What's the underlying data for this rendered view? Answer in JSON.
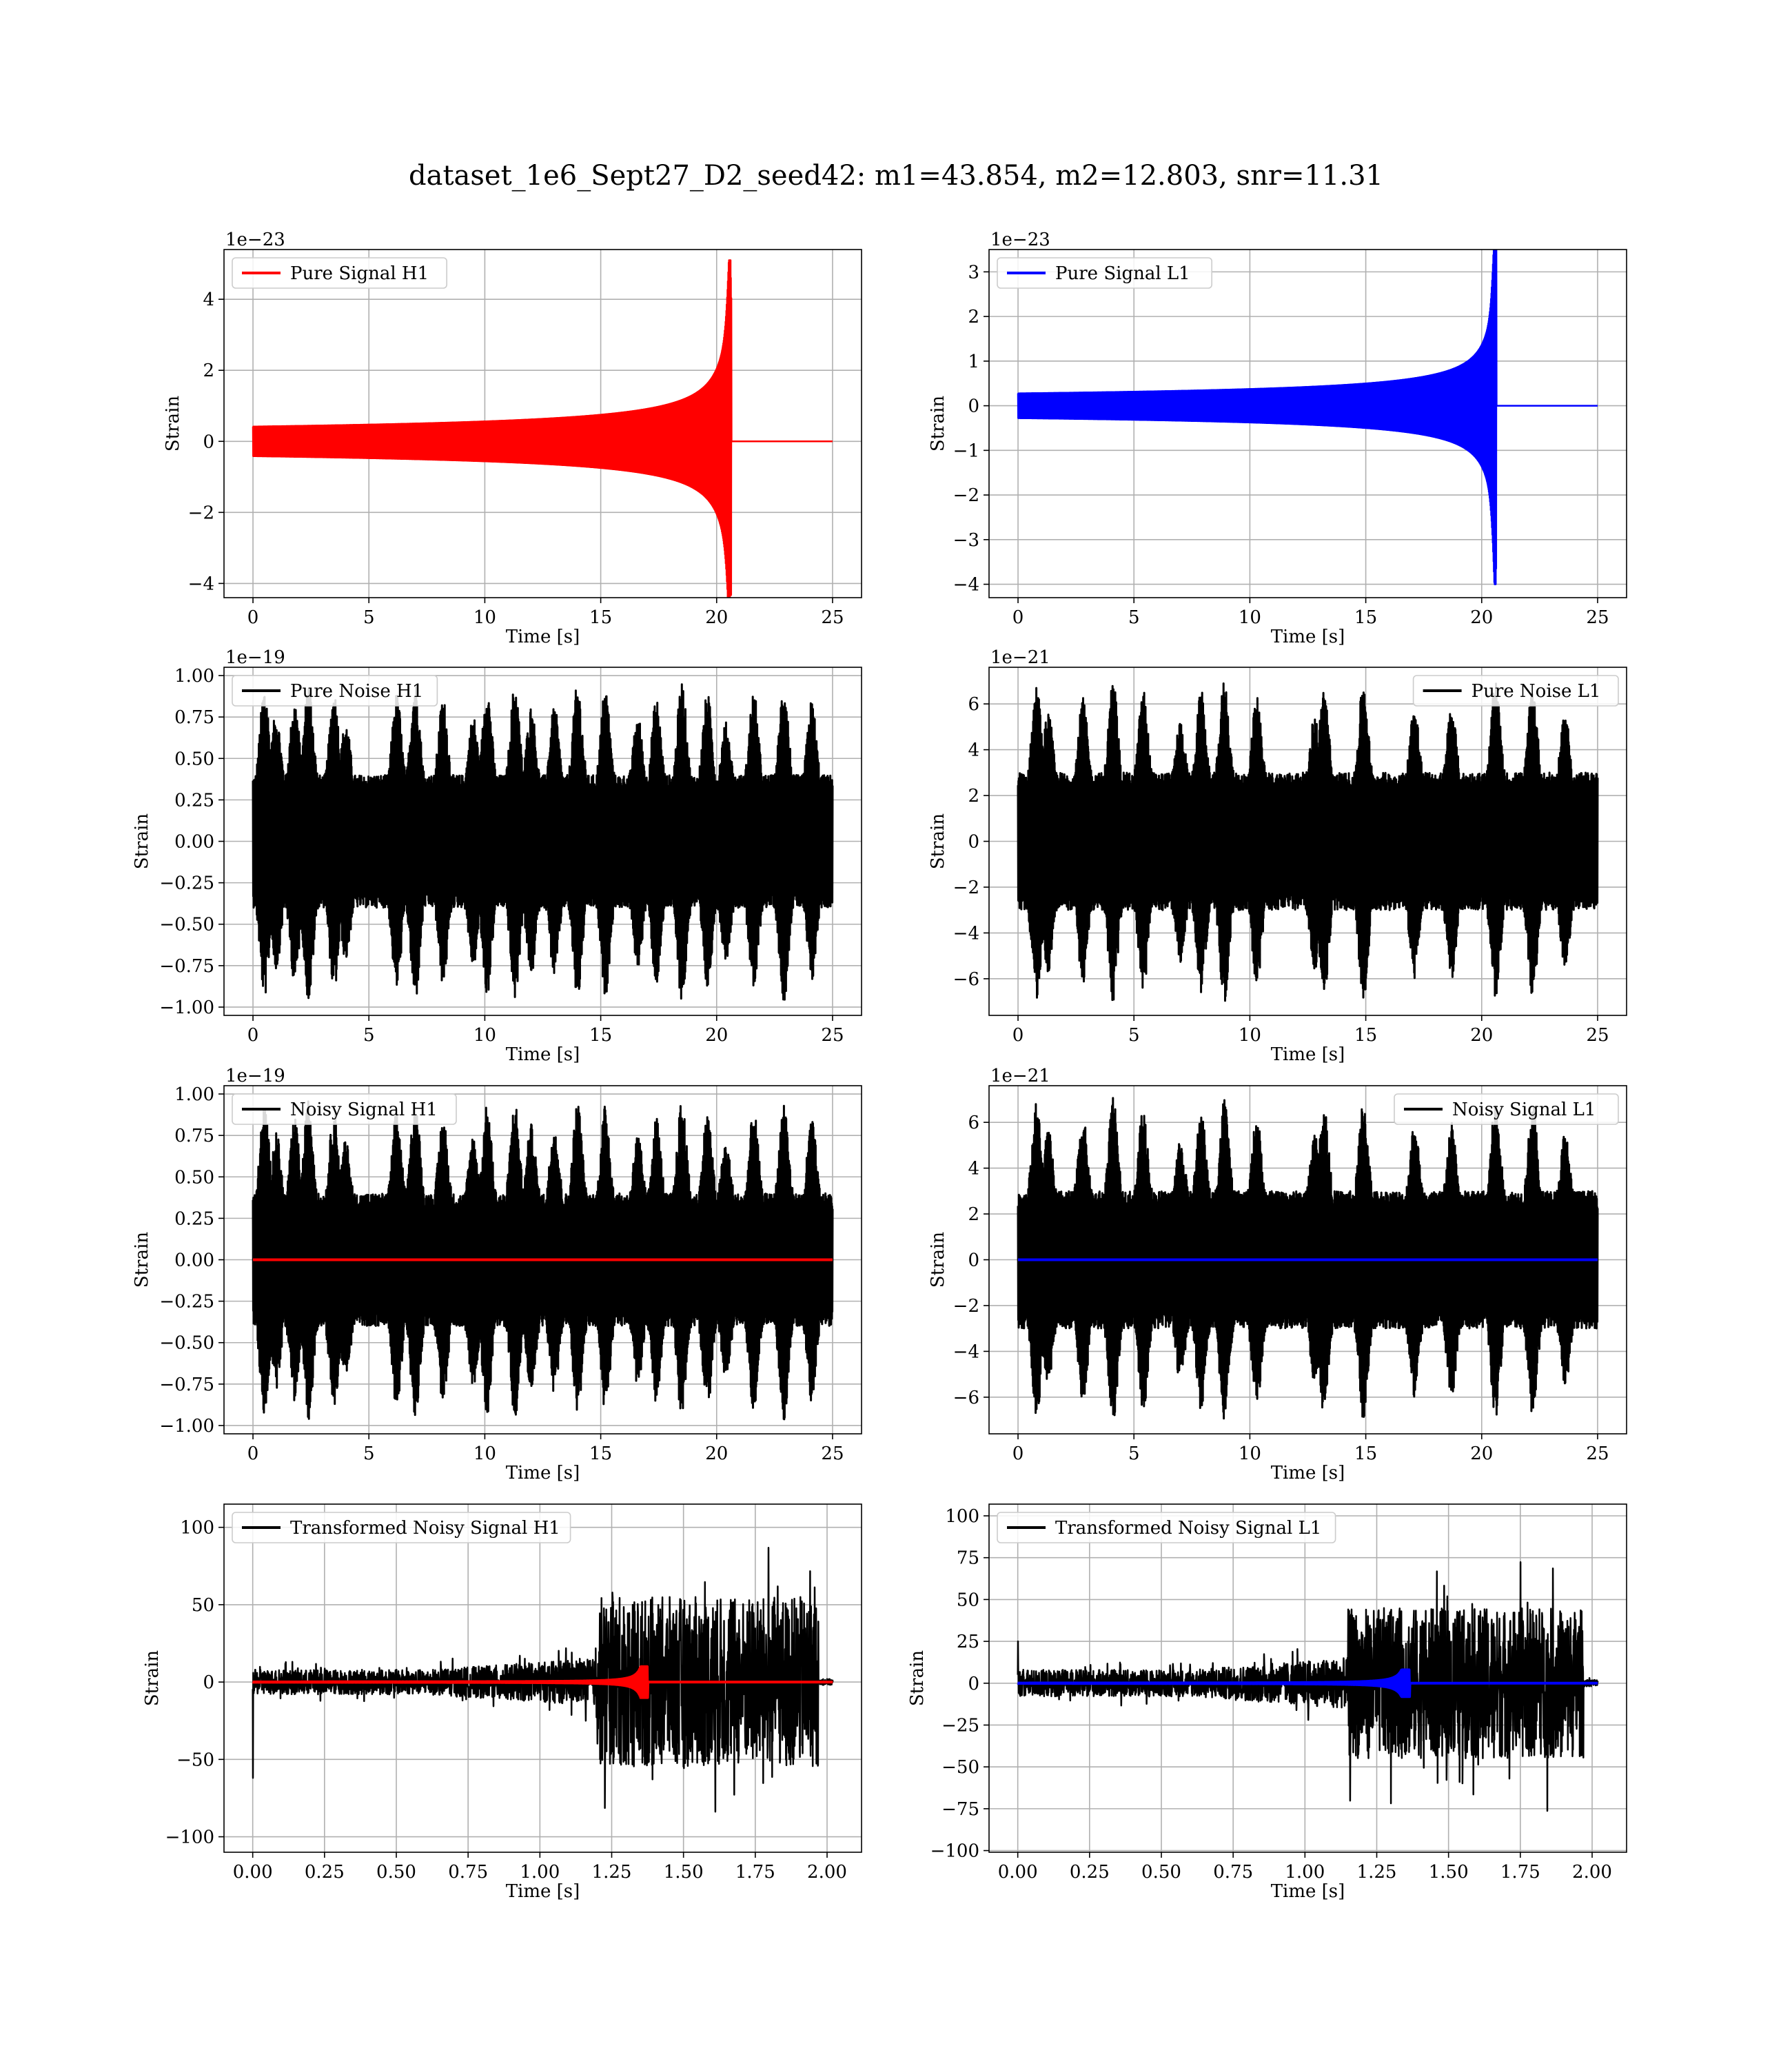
{
  "figure_title": "dataset_1e6_Sept27_D2_seed42: m1=43.854, m2=12.803, snr=11.31",
  "colors": {
    "h1": "#ff0000",
    "l1": "#0000ff",
    "noise": "#000000",
    "grid": "#b0b0b0"
  },
  "chart_data": [
    {
      "type": "line",
      "title": "",
      "xlabel": "Time [s]",
      "ylabel": "Strain",
      "offset_label": "1e−23",
      "xlim": [
        -1.25,
        26.25
      ],
      "ylim": [
        -4.4,
        5.4
      ],
      "xticks": [
        0,
        5,
        10,
        15,
        20,
        25
      ],
      "yticks": [
        -4,
        -2,
        0,
        2,
        4
      ],
      "ytick_labels": [
        "−4",
        "−2",
        "0",
        "2",
        "4"
      ],
      "legend_position": "upper-left",
      "series": [
        {
          "name": "Pure Signal H1",
          "kind": "chirp",
          "color": "#ff0000",
          "x_range": [
            0,
            25
          ],
          "merger_time": 20.6,
          "amplitude_before_merger": 1.5,
          "peak_positive": 5.1,
          "peak_negative": -4.0
        }
      ]
    },
    {
      "type": "line",
      "title": "",
      "xlabel": "Time [s]",
      "ylabel": "Strain",
      "offset_label": "1e−23",
      "xlim": [
        -1.25,
        26.25
      ],
      "ylim": [
        -4.3,
        3.5
      ],
      "xticks": [
        0,
        5,
        10,
        15,
        20,
        25
      ],
      "yticks": [
        -4,
        -3,
        -2,
        -1,
        0,
        1,
        2,
        3
      ],
      "ytick_labels": [
        "−4",
        "−3",
        "−2",
        "−1",
        "0",
        "1",
        "2",
        "3"
      ],
      "legend_position": "upper-left",
      "series": [
        {
          "name": "Pure Signal L1",
          "kind": "chirp",
          "color": "#0000ff",
          "x_range": [
            0,
            25
          ],
          "merger_time": 20.6,
          "amplitude_before_merger": 1.0,
          "peak_positive": 3.2,
          "peak_negative": -4.0
        }
      ]
    },
    {
      "type": "line",
      "title": "",
      "xlabel": "Time [s]",
      "ylabel": "Strain",
      "offset_label": "1e−19",
      "xlim": [
        -1.25,
        26.25
      ],
      "ylim": [
        -1.05,
        1.05
      ],
      "xticks": [
        0,
        5,
        10,
        15,
        20,
        25
      ],
      "yticks": [
        -1.0,
        -0.75,
        -0.5,
        -0.25,
        0.0,
        0.25,
        0.5,
        0.75,
        1.0
      ],
      "ytick_labels": [
        "−1.00",
        "−0.75",
        "−0.50",
        "−0.25",
        "0.00",
        "0.25",
        "0.50",
        "0.75",
        "1.00"
      ],
      "legend_position": "upper-left",
      "series": [
        {
          "name": "Pure Noise H1",
          "kind": "noise",
          "color": "#000000",
          "x_range": [
            0,
            25
          ],
          "envelope_max": 0.97,
          "envelope_min": 0.4,
          "peak_times": [
            0.5,
            1.0,
            1.8,
            2.4,
            3.5,
            4.0,
            6.2,
            7.0,
            8.2,
            9.5,
            10.1,
            11.3,
            12.0,
            13.0,
            14.0,
            15.2,
            16.6,
            17.4,
            18.5,
            19.6,
            20.4,
            21.6,
            22.9,
            24.1
          ]
        }
      ]
    },
    {
      "type": "line",
      "title": "",
      "xlabel": "Time [s]",
      "ylabel": "Strain",
      "offset_label": "1e−21",
      "xlim": [
        -1.25,
        26.25
      ],
      "ylim": [
        -7.6,
        7.6
      ],
      "xticks": [
        0,
        5,
        10,
        15,
        20,
        25
      ],
      "yticks": [
        -6,
        -4,
        -2,
        0,
        2,
        4,
        6
      ],
      "ytick_labels": [
        "−6",
        "−4",
        "−2",
        "0",
        "2",
        "4",
        "6"
      ],
      "legend_position": "upper-right",
      "series": [
        {
          "name": "Pure Noise L1",
          "kind": "noise",
          "color": "#000000",
          "x_range": [
            0,
            25
          ],
          "envelope_max": 7.1,
          "envelope_min": 3.0,
          "peak_times": [
            0.8,
            1.3,
            2.8,
            4.1,
            5.4,
            7.0,
            7.9,
            8.9,
            10.3,
            12.8,
            13.2,
            14.9,
            17.1,
            18.7,
            20.6,
            22.2,
            23.6
          ]
        }
      ]
    },
    {
      "type": "line",
      "title": "",
      "xlabel": "Time [s]",
      "ylabel": "Strain",
      "offset_label": "1e−19",
      "xlim": [
        -1.25,
        26.25
      ],
      "ylim": [
        -1.05,
        1.05
      ],
      "xticks": [
        0,
        5,
        10,
        15,
        20,
        25
      ],
      "yticks": [
        -1.0,
        -0.75,
        -0.5,
        -0.25,
        0.0,
        0.25,
        0.5,
        0.75,
        1.0
      ],
      "ytick_labels": [
        "−1.00",
        "−0.75",
        "−0.50",
        "−0.25",
        "0.00",
        "0.25",
        "0.50",
        "0.75",
        "1.00"
      ],
      "legend_position": "upper-left",
      "series": [
        {
          "name": "Noisy Signal H1",
          "kind": "noise",
          "color": "#000000",
          "x_range": [
            0,
            25
          ],
          "envelope_max": 0.97,
          "envelope_min": 0.4,
          "peak_times": [
            0.5,
            1.0,
            1.8,
            2.4,
            3.5,
            4.0,
            6.2,
            7.0,
            8.2,
            9.5,
            10.1,
            11.3,
            12.0,
            13.0,
            14.0,
            15.2,
            16.6,
            17.4,
            18.5,
            19.6,
            20.4,
            21.6,
            22.9,
            24.1
          ]
        },
        {
          "kind": "flat",
          "color": "#ff0000",
          "x_range": [
            0,
            25
          ],
          "value": 0.0
        }
      ]
    },
    {
      "type": "line",
      "title": "",
      "xlabel": "Time [s]",
      "ylabel": "Strain",
      "offset_label": "1e−21",
      "xlim": [
        -1.25,
        26.25
      ],
      "ylim": [
        -7.6,
        7.6
      ],
      "xticks": [
        0,
        5,
        10,
        15,
        20,
        25
      ],
      "yticks": [
        -6,
        -4,
        -2,
        0,
        2,
        4,
        6
      ],
      "ytick_labels": [
        "−6",
        "−4",
        "−2",
        "0",
        "2",
        "4",
        "6"
      ],
      "legend_position": "upper-right",
      "series": [
        {
          "name": "Noisy Signal L1",
          "kind": "noise",
          "color": "#000000",
          "x_range": [
            0,
            25
          ],
          "envelope_max": 7.1,
          "envelope_min": 3.0,
          "peak_times": [
            0.8,
            1.3,
            2.8,
            4.1,
            5.4,
            7.0,
            7.9,
            8.9,
            10.3,
            12.8,
            13.2,
            14.9,
            17.1,
            18.7,
            20.6,
            22.2,
            23.6
          ]
        },
        {
          "kind": "flat",
          "color": "#0000ff",
          "x_range": [
            0,
            25
          ],
          "value": 0.0
        }
      ]
    },
    {
      "type": "line",
      "title": "",
      "xlabel": "Time [s]",
      "ylabel": "Strain",
      "offset_label": "",
      "xlim": [
        -0.1,
        2.12
      ],
      "ylim": [
        -110,
        115
      ],
      "xticks": [
        0.0,
        0.25,
        0.5,
        0.75,
        1.0,
        1.25,
        1.5,
        1.75,
        2.0
      ],
      "xtick_labels": [
        "0.00",
        "0.25",
        "0.50",
        "0.75",
        "1.00",
        "1.25",
        "1.50",
        "1.75",
        "2.00"
      ],
      "yticks": [
        -100,
        -50,
        0,
        50,
        100
      ],
      "ytick_labels": [
        "−100",
        "−50",
        "0",
        "50",
        "100"
      ],
      "legend_position": "upper-left",
      "series": [
        {
          "name": "Transformed Noisy Signal H1",
          "kind": "whitened",
          "color": "#000000",
          "x_range": [
            0,
            2.02
          ],
          "low_amplitude": 8,
          "high_amplitude": 55,
          "jump_time": 1.2,
          "end_time": 1.97,
          "start_spike": -62
        },
        {
          "kind": "small-chirp",
          "color": "#ff0000",
          "x_range": [
            0,
            2.02
          ],
          "merger_time": 1.37,
          "peak": 10
        }
      ]
    },
    {
      "type": "line",
      "title": "",
      "xlabel": "Time [s]",
      "ylabel": "Strain",
      "offset_label": "",
      "xlim": [
        -0.1,
        2.12
      ],
      "ylim": [
        -101,
        107
      ],
      "xticks": [
        0.0,
        0.25,
        0.5,
        0.75,
        1.0,
        1.25,
        1.5,
        1.75,
        2.0
      ],
      "xtick_labels": [
        "0.00",
        "0.25",
        "0.50",
        "0.75",
        "1.00",
        "1.25",
        "1.50",
        "1.75",
        "2.00"
      ],
      "yticks": [
        -100,
        -75,
        -50,
        -25,
        0,
        25,
        50,
        75,
        100
      ],
      "ytick_labels": [
        "−100",
        "−75",
        "−50",
        "−25",
        "0",
        "25",
        "50",
        "75",
        "100"
      ],
      "legend_position": "upper-left",
      "series": [
        {
          "name": "Transformed Noisy Signal L1",
          "kind": "whitened",
          "color": "#000000",
          "x_range": [
            0,
            2.02
          ],
          "low_amplitude": 8,
          "high_amplitude": 45,
          "jump_time": 1.15,
          "end_time": 1.97,
          "start_spike": 25
        },
        {
          "kind": "small-chirp",
          "color": "#0000ff",
          "x_range": [
            0,
            2.02
          ],
          "merger_time": 1.36,
          "peak": 8
        }
      ]
    }
  ]
}
